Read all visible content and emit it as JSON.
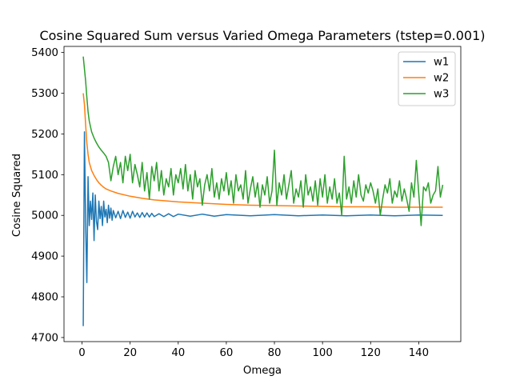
{
  "chart_data": {
    "type": "line",
    "title": "Cosine Squared Sum versus Varied Omega Parameters (tstep=0.001)",
    "xlabel": "Omega",
    "ylabel": "Cosine Squared",
    "xlim": [
      -7.5,
      157.5
    ],
    "ylim": [
      4690,
      5415
    ],
    "xticks": [
      0,
      20,
      40,
      60,
      80,
      100,
      120,
      140
    ],
    "yticks": [
      4700,
      4800,
      4900,
      5000,
      5100,
      5200,
      5300,
      5400
    ],
    "grid": false,
    "legend_position": "top-right",
    "series": [
      {
        "name": "w1",
        "color": "#1f77b4",
        "points": [
          [
            0.5,
            4728
          ],
          [
            1,
            5205
          ],
          [
            1.5,
            4980
          ],
          [
            2,
            4835
          ],
          [
            2.5,
            5095
          ],
          [
            3,
            4975
          ],
          [
            3.5,
            5035
          ],
          [
            4,
            4990
          ],
          [
            4.5,
            5055
          ],
          [
            5,
            4938
          ],
          [
            5.5,
            5050
          ],
          [
            6,
            4985
          ],
          [
            6.5,
            4965
          ],
          [
            7,
            5035
          ],
          [
            7.5,
            4992
          ],
          [
            8,
            5022
          ],
          [
            8.5,
            4975
          ],
          [
            9,
            5035
          ],
          [
            9.5,
            4996
          ],
          [
            10,
            5015
          ],
          [
            10.5,
            4982
          ],
          [
            11,
            5025
          ],
          [
            11.5,
            4993
          ],
          [
            12,
            5018
          ],
          [
            12.5,
            4988
          ],
          [
            13,
            5012
          ],
          [
            14,
            4994
          ],
          [
            15,
            5010
          ],
          [
            16,
            4992
          ],
          [
            17,
            5012
          ],
          [
            18,
            4995
          ],
          [
            19,
            5008
          ],
          [
            20,
            4993
          ],
          [
            21,
            5010
          ],
          [
            22,
            4996
          ],
          [
            23,
            5006
          ],
          [
            24,
            4995
          ],
          [
            25,
            5007
          ],
          [
            26,
            4996
          ],
          [
            27,
            5006
          ],
          [
            28,
            4996
          ],
          [
            29,
            5005
          ],
          [
            30,
            4997
          ],
          [
            32,
            5004
          ],
          [
            34,
            4997
          ],
          [
            36,
            5004
          ],
          [
            38,
            4997
          ],
          [
            40,
            5003
          ],
          [
            45,
            4998
          ],
          [
            50,
            5003
          ],
          [
            55,
            4998
          ],
          [
            60,
            5002
          ],
          [
            70,
            4999
          ],
          [
            80,
            5002
          ],
          [
            90,
            4999
          ],
          [
            100,
            5001
          ],
          [
            110,
            4999
          ],
          [
            120,
            5001
          ],
          [
            130,
            4999
          ],
          [
            140,
            5001
          ],
          [
            150,
            5000
          ]
        ]
      },
      {
        "name": "w2",
        "color": "#ff7f0e",
        "points": [
          [
            0.5,
            5300
          ],
          [
            1,
            5272
          ],
          [
            1.5,
            5222
          ],
          [
            2,
            5178
          ],
          [
            2.5,
            5150
          ],
          [
            3,
            5130
          ],
          [
            4,
            5110
          ],
          [
            5,
            5098
          ],
          [
            6,
            5088
          ],
          [
            7,
            5080
          ],
          [
            8,
            5074
          ],
          [
            9,
            5069
          ],
          [
            10,
            5065
          ],
          [
            12,
            5060
          ],
          [
            15,
            5054
          ],
          [
            20,
            5047
          ],
          [
            25,
            5042
          ],
          [
            30,
            5038
          ],
          [
            40,
            5033
          ],
          [
            50,
            5030
          ],
          [
            60,
            5027
          ],
          [
            70,
            5025
          ],
          [
            80,
            5024
          ],
          [
            90,
            5023
          ],
          [
            100,
            5022
          ],
          [
            110,
            5021
          ],
          [
            120,
            5021
          ],
          [
            130,
            5020
          ],
          [
            140,
            5020
          ],
          [
            150,
            5020
          ]
        ]
      },
      {
        "name": "w3",
        "color": "#2ca02c",
        "points": [
          [
            0.5,
            5390
          ],
          [
            1,
            5360
          ],
          [
            1.5,
            5330
          ],
          [
            2,
            5290
          ],
          [
            2.5,
            5255
          ],
          [
            3,
            5232
          ],
          [
            3.5,
            5218
          ],
          [
            4,
            5205
          ],
          [
            5,
            5190
          ],
          [
            6,
            5178
          ],
          [
            7,
            5168
          ],
          [
            8,
            5160
          ],
          [
            9,
            5153
          ],
          [
            10,
            5145
          ],
          [
            11,
            5130
          ],
          [
            12,
            5085
          ],
          [
            13,
            5120
          ],
          [
            14,
            5145
          ],
          [
            15,
            5100
          ],
          [
            16,
            5130
          ],
          [
            17,
            5080
          ],
          [
            18,
            5145
          ],
          [
            19,
            5110
          ],
          [
            20,
            5150
          ],
          [
            21,
            5080
          ],
          [
            22,
            5125
          ],
          [
            23,
            5100
          ],
          [
            24,
            5070
          ],
          [
            25,
            5130
          ],
          [
            26,
            5060
          ],
          [
            27,
            5105
          ],
          [
            28,
            5040
          ],
          [
            29,
            5120
          ],
          [
            30,
            5085
          ],
          [
            31,
            5130
          ],
          [
            32,
            5060
          ],
          [
            33,
            5110
          ],
          [
            34,
            5050
          ],
          [
            35,
            5090
          ],
          [
            36,
            5070
          ],
          [
            37,
            5115
          ],
          [
            38,
            5050
          ],
          [
            39,
            5100
          ],
          [
            40,
            5080
          ],
          [
            41,
            5115
          ],
          [
            42,
            5065
          ],
          [
            43,
            5125
          ],
          [
            44,
            5060
          ],
          [
            45,
            5100
          ],
          [
            46,
            5040
          ],
          [
            47,
            5110
          ],
          [
            48,
            5070
          ],
          [
            49,
            5090
          ],
          [
            50,
            5025
          ],
          [
            51,
            5075
          ],
          [
            52,
            5100
          ],
          [
            53,
            5060
          ],
          [
            54,
            5115
          ],
          [
            55,
            5045
          ],
          [
            56,
            5080
          ],
          [
            57,
            5040
          ],
          [
            58,
            5090
          ],
          [
            59,
            5060
          ],
          [
            60,
            5105
          ],
          [
            61,
            5050
          ],
          [
            62,
            5085
          ],
          [
            63,
            5030
          ],
          [
            64,
            5100
          ],
          [
            65,
            5060
          ],
          [
            66,
            5075
          ],
          [
            67,
            5040
          ],
          [
            68,
            5110
          ],
          [
            69,
            5030
          ],
          [
            70,
            5065
          ],
          [
            71,
            5095
          ],
          [
            72,
            5045
          ],
          [
            73,
            5080
          ],
          [
            74,
            5020
          ],
          [
            75,
            5075
          ],
          [
            76,
            5050
          ],
          [
            77,
            5095
          ],
          [
            78,
            5030
          ],
          [
            79,
            5060
          ],
          [
            80,
            5160
          ],
          [
            81,
            5025
          ],
          [
            82,
            5080
          ],
          [
            83,
            5050
          ],
          [
            84,
            5100
          ],
          [
            85,
            5040
          ],
          [
            86,
            5075
          ],
          [
            87,
            5110
          ],
          [
            88,
            5030
          ],
          [
            89,
            5065
          ],
          [
            90,
            5045
          ],
          [
            91,
            5085
          ],
          [
            92,
            5020
          ],
          [
            93,
            5100
          ],
          [
            94,
            5050
          ],
          [
            95,
            5070
          ],
          [
            96,
            5035
          ],
          [
            97,
            5085
          ],
          [
            98,
            5025
          ],
          [
            99,
            5090
          ],
          [
            100,
            5045
          ],
          [
            101,
            5100
          ],
          [
            102,
            5030
          ],
          [
            103,
            5070
          ],
          [
            104,
            5040
          ],
          [
            105,
            5090
          ],
          [
            106,
            5030
          ],
          [
            107,
            5055
          ],
          [
            108,
            5000
          ],
          [
            109,
            5145
          ],
          [
            110,
            5040
          ],
          [
            111,
            5070
          ],
          [
            112,
            5030
          ],
          [
            113,
            5085
          ],
          [
            114,
            5045
          ],
          [
            115,
            5100
          ],
          [
            116,
            5050
          ],
          [
            117,
            5035
          ],
          [
            118,
            5075
          ],
          [
            119,
            5055
          ],
          [
            120,
            5080
          ],
          [
            121,
            5060
          ],
          [
            122,
            5030
          ],
          [
            123,
            5065
          ],
          [
            124,
            5000
          ],
          [
            125,
            5040
          ],
          [
            126,
            5075
          ],
          [
            127,
            5055
          ],
          [
            128,
            5090
          ],
          [
            129,
            5030
          ],
          [
            130,
            5060
          ],
          [
            131,
            5045
          ],
          [
            132,
            5085
          ],
          [
            133,
            5035
          ],
          [
            134,
            5065
          ],
          [
            135,
            5040
          ],
          [
            136,
            5010
          ],
          [
            137,
            5080
          ],
          [
            138,
            5045
          ],
          [
            139,
            5135
          ],
          [
            140,
            5055
          ],
          [
            141,
            4975
          ],
          [
            142,
            5070
          ],
          [
            143,
            5060
          ],
          [
            144,
            5080
          ],
          [
            145,
            5030
          ],
          [
            146,
            5050
          ],
          [
            147,
            5060
          ],
          [
            148,
            5120
          ],
          [
            149,
            5045
          ],
          [
            150,
            5075
          ]
        ]
      }
    ]
  }
}
